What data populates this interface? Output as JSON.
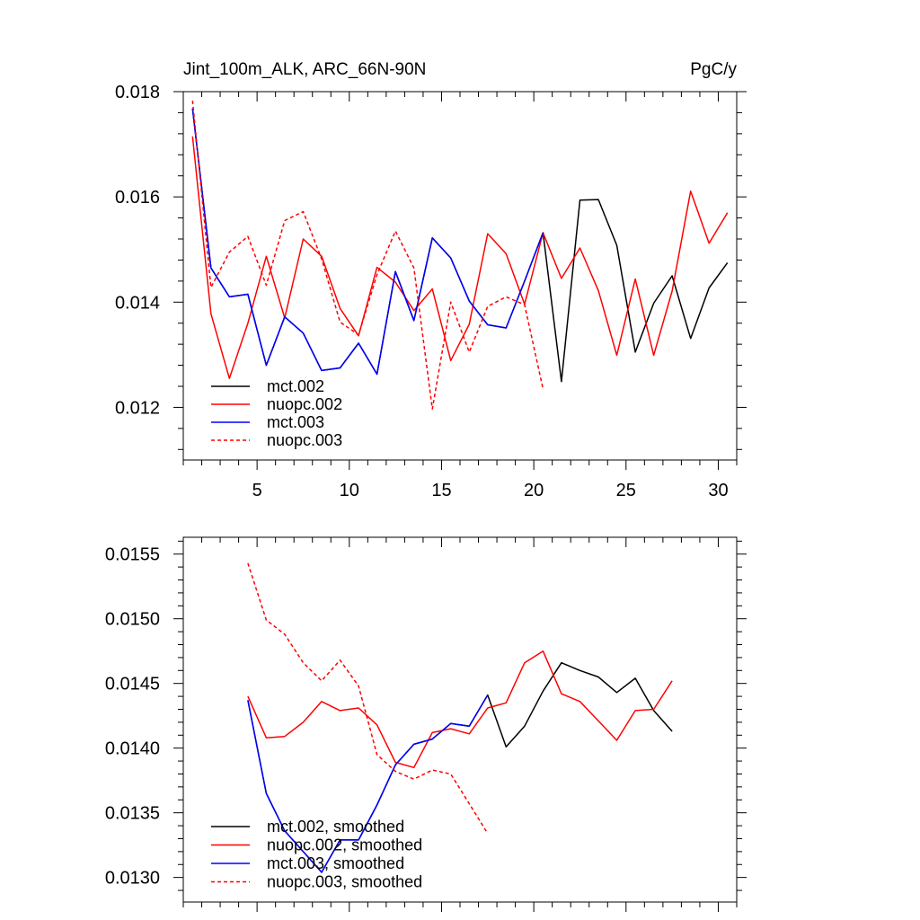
{
  "chart_data": [
    {
      "type": "line",
      "title_left": "Jint_100m_ALK, ARC_66N-90N",
      "title_right": "PgC/y",
      "xlim": [
        1,
        31
      ],
      "ylim": [
        0.011,
        0.018
      ],
      "xticks": [
        5,
        10,
        15,
        20,
        25,
        30
      ],
      "xtick_labels": [
        "5",
        "10",
        "15",
        "20",
        "25",
        "30"
      ],
      "yticks": [
        0.012,
        0.014,
        0.016,
        0.018
      ],
      "ytick_labels": [
        "0.012",
        "0.014",
        "0.016",
        "0.018"
      ],
      "legend_position": "bottom-left",
      "series": [
        {
          "name": "mct.002",
          "color": "#000000",
          "dash": "solid",
          "x": [
            1.5,
            2.5,
            3.5,
            4.5,
            5.5,
            6.5,
            7.5,
            8.5,
            9.5,
            10.5,
            11.5,
            12.5,
            13.5,
            14.5,
            15.5,
            16.5,
            17.5,
            18.5,
            19.5,
            20.5,
            21.5,
            22.5,
            23.5,
            24.5,
            25.5,
            26.5,
            27.5,
            28.5,
            29.5,
            30.5
          ],
          "values": [
            0.01768,
            0.01465,
            0.0141,
            0.01415,
            0.0128,
            0.01372,
            0.01341,
            0.0127,
            0.01275,
            0.01322,
            0.01263,
            0.01458,
            0.01365,
            0.01522,
            0.01484,
            0.01402,
            0.01357,
            0.01351,
            0.0144,
            0.01532,
            0.01249,
            0.01594,
            0.01595,
            0.01508,
            0.01305,
            0.01398,
            0.0145,
            0.01331,
            0.01427,
            0.01475
          ]
        },
        {
          "name": "nuopc.002",
          "color": "#ff0000",
          "dash": "solid",
          "x": [
            1.5,
            2.5,
            3.5,
            4.5,
            5.5,
            6.5,
            7.5,
            8.5,
            9.5,
            10.5,
            11.5,
            12.5,
            13.5,
            14.5,
            15.5,
            16.5,
            17.5,
            18.5,
            19.5,
            20.5,
            21.5,
            22.5,
            23.5,
            24.5,
            25.5,
            26.5,
            27.5,
            28.5,
            29.5,
            30.5
          ],
          "values": [
            0.01715,
            0.01378,
            0.01255,
            0.0136,
            0.01487,
            0.0137,
            0.0152,
            0.01487,
            0.01388,
            0.01336,
            0.01466,
            0.01438,
            0.01384,
            0.01425,
            0.01289,
            0.01358,
            0.0153,
            0.01492,
            0.01396,
            0.01532,
            0.01445,
            0.01503,
            0.01422,
            0.01299,
            0.01444,
            0.01299,
            0.01421,
            0.01611,
            0.01512,
            0.0157
          ]
        },
        {
          "name": "mct.003",
          "color": "#0000ff",
          "dash": "solid",
          "x": [
            1.5,
            2.5,
            3.5,
            4.5,
            5.5,
            6.5,
            7.5,
            8.5,
            9.5,
            10.5,
            11.5,
            12.5,
            13.5,
            14.5,
            15.5,
            16.5,
            17.5,
            18.5,
            19.5,
            20.5
          ],
          "values": [
            0.01768,
            0.01465,
            0.0141,
            0.01415,
            0.0128,
            0.01372,
            0.01341,
            0.0127,
            0.01275,
            0.01322,
            0.01263,
            0.01458,
            0.01365,
            0.01522,
            0.01484,
            0.01402,
            0.01357,
            0.01351,
            0.0144,
            0.01532
          ]
        },
        {
          "name": "nuopc.003",
          "color": "#ff0000",
          "dash": "dashed",
          "x": [
            1.5,
            2.5,
            3.5,
            4.5,
            5.5,
            6.5,
            7.5,
            8.5,
            9.5,
            10.5,
            11.5,
            12.5,
            13.5,
            14.5,
            15.5,
            16.5,
            17.5,
            18.5,
            19.5,
            20.5
          ],
          "values": [
            0.01783,
            0.01428,
            0.01495,
            0.01525,
            0.01432,
            0.01555,
            0.01572,
            0.01482,
            0.01362,
            0.01338,
            0.01452,
            0.01535,
            0.01465,
            0.01197,
            0.014,
            0.01305,
            0.01392,
            0.0141,
            0.01395,
            0.01235
          ]
        }
      ]
    },
    {
      "type": "line",
      "xlim": [
        1,
        31
      ],
      "ylim": [
        0.01281,
        0.01563
      ],
      "xticks": [
        5,
        10,
        15,
        20,
        25,
        30
      ],
      "yticks": [
        0.013,
        0.0135,
        0.014,
        0.0145,
        0.015,
        0.0155
      ],
      "ytick_labels": [
        "0.0130",
        "0.0135",
        "0.0140",
        "0.0145",
        "0.0150",
        "0.0155"
      ],
      "legend_position": "bottom-left",
      "series": [
        {
          "name": "mct.002, smoothed",
          "color": "#000000",
          "dash": "solid",
          "x": [
            4.5,
            5.5,
            6.5,
            7.5,
            8.5,
            9.5,
            10.5,
            11.5,
            12.5,
            13.5,
            14.5,
            15.5,
            16.5,
            17.5,
            18.5,
            19.5,
            20.5,
            21.5,
            22.5,
            23.5,
            24.5,
            25.5,
            26.5,
            27.5
          ],
          "values": [
            0.01437,
            0.01365,
            0.01336,
            0.0132,
            0.01304,
            0.01329,
            0.01329,
            0.01356,
            0.01387,
            0.01403,
            0.01407,
            0.01419,
            0.01417,
            0.01441,
            0.01401,
            0.01417,
            0.01444,
            0.01466,
            0.0146,
            0.01455,
            0.01443,
            0.01454,
            0.01429,
            0.01413
          ]
        },
        {
          "name": "nuopc.002, smoothed",
          "color": "#ff0000",
          "dash": "solid",
          "x": [
            4.5,
            5.5,
            6.5,
            7.5,
            8.5,
            9.5,
            10.5,
            11.5,
            12.5,
            13.5,
            14.5,
            15.5,
            16.5,
            17.5,
            18.5,
            19.5,
            20.5,
            21.5,
            22.5,
            23.5,
            24.5,
            25.5,
            26.5,
            27.5
          ],
          "values": [
            0.0144,
            0.01408,
            0.01409,
            0.0142,
            0.01436,
            0.01429,
            0.01431,
            0.01418,
            0.01389,
            0.01385,
            0.01412,
            0.01415,
            0.01411,
            0.01431,
            0.01435,
            0.01466,
            0.01475,
            0.01442,
            0.01436,
            0.01421,
            0.01406,
            0.01429,
            0.0143,
            0.01452
          ]
        },
        {
          "name": "mct.003, smoothed",
          "color": "#0000ff",
          "dash": "solid",
          "x": [
            4.5,
            5.5,
            6.5,
            7.5,
            8.5,
            9.5,
            10.5,
            11.5,
            12.5,
            13.5,
            14.5,
            15.5,
            16.5,
            17.5
          ],
          "values": [
            0.01437,
            0.01365,
            0.01336,
            0.0132,
            0.01304,
            0.01329,
            0.01329,
            0.01356,
            0.01387,
            0.01403,
            0.01407,
            0.01419,
            0.01417,
            0.01441
          ]
        },
        {
          "name": "nuopc.003, smoothed",
          "color": "#ff0000",
          "dash": "dashed",
          "x": [
            4.5,
            5.5,
            6.5,
            7.5,
            8.5,
            9.5,
            10.5,
            11.5,
            12.5,
            13.5,
            14.5,
            15.5,
            16.5,
            17.5
          ],
          "values": [
            0.01543,
            0.01499,
            0.01488,
            0.01466,
            0.01452,
            0.01468,
            0.01448,
            0.01395,
            0.01382,
            0.01376,
            0.01383,
            0.0138,
            0.01357,
            0.01334
          ]
        }
      ]
    }
  ]
}
